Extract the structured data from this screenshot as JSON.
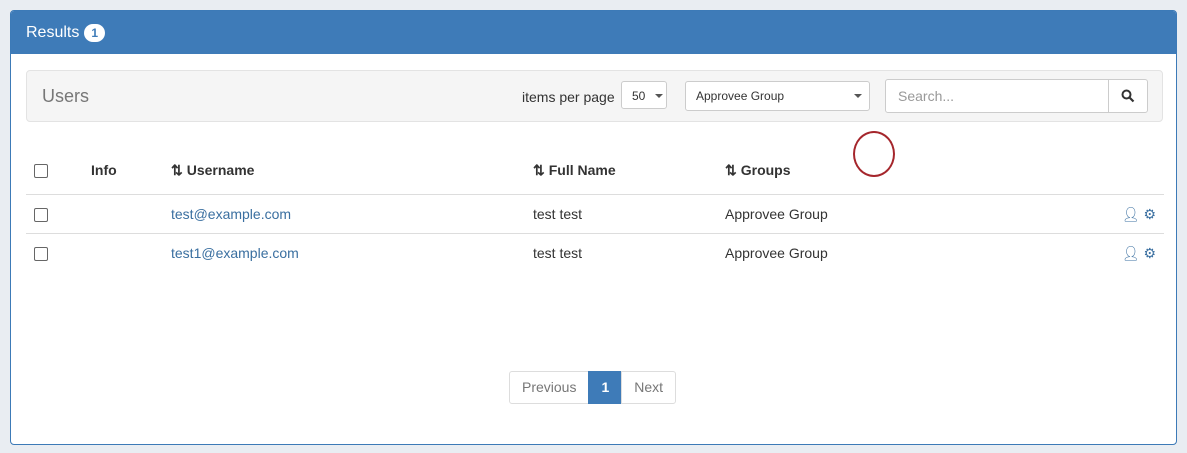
{
  "panel": {
    "title": "Results",
    "badge": "1"
  },
  "toolbar": {
    "title": "Users",
    "items_per_page_label": "items per page",
    "items_per_page_value": "50",
    "group_filter_value": "Approvee Group",
    "search_placeholder": "Search..."
  },
  "table": {
    "headers": {
      "info": "Info",
      "username": "Username",
      "full_name": "Full Name",
      "groups": "Groups"
    },
    "rows": [
      {
        "username": "test@example.com",
        "full_name": "test test",
        "groups": "Approvee Group"
      },
      {
        "username": "test1@example.com",
        "full_name": "test test",
        "groups": "Approvee Group"
      }
    ]
  },
  "pagination": {
    "previous": "Previous",
    "current": "1",
    "next": "Next"
  },
  "colors": {
    "primary": "#3e7bb8",
    "link": "#3a6fa0",
    "annotation": "#a5262c"
  }
}
